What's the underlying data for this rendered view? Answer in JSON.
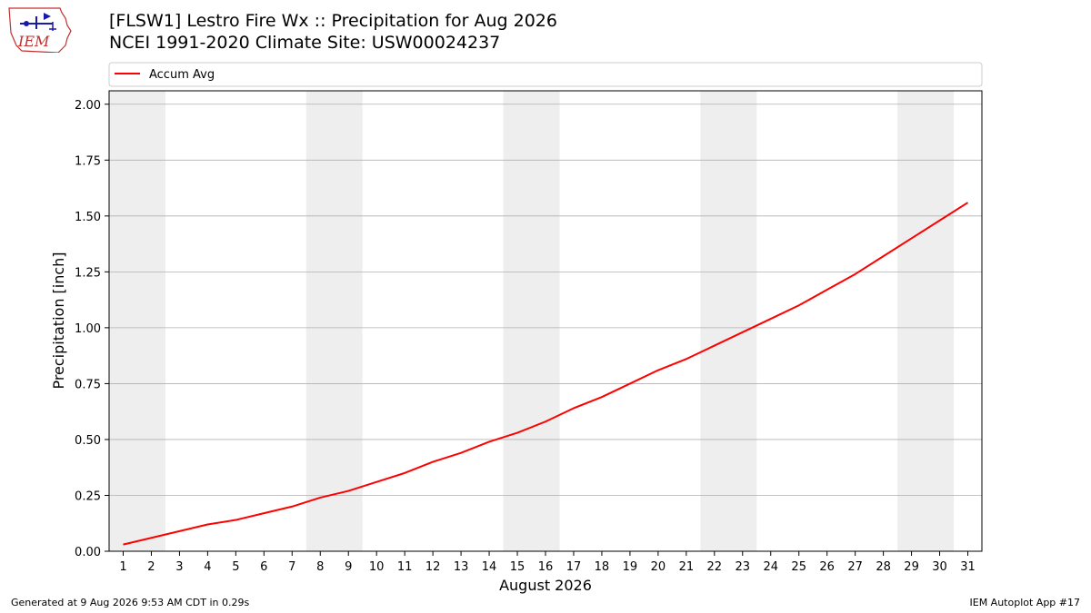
{
  "header": {
    "title_line1": "[FLSW1] Lestro Fire Wx :: Precipitation for Aug 2026",
    "title_line2": "NCEI 1991-2020 Climate Site: USW00024237"
  },
  "logo": {
    "text": "IEM",
    "icon": "iowa-weather-logo-icon"
  },
  "footer": {
    "generated": "Generated at 9 Aug 2026 9:53 AM CDT in 0.29s",
    "app": "IEM Autoplot App #17"
  },
  "colors": {
    "line": "#ff0000",
    "weekend_band": "#eeeeee",
    "grid": "#b0b0b0"
  },
  "chart_data": {
    "type": "line",
    "xlabel": "August 2026",
    "ylabel": "Precipitation [inch]",
    "x": [
      1,
      2,
      3,
      4,
      5,
      6,
      7,
      8,
      9,
      10,
      11,
      12,
      13,
      14,
      15,
      16,
      17,
      18,
      19,
      20,
      21,
      22,
      23,
      24,
      25,
      26,
      27,
      28,
      29,
      30,
      31
    ],
    "xlim": [
      0.5,
      31.5
    ],
    "ylim": [
      0,
      2.06
    ],
    "yticks": [
      0.0,
      0.25,
      0.5,
      0.75,
      1.0,
      1.25,
      1.5,
      1.75,
      2.0
    ],
    "ytick_labels": [
      "0.00",
      "0.25",
      "0.50",
      "0.75",
      "1.00",
      "1.25",
      "1.50",
      "1.75",
      "2.00"
    ],
    "grid": "horizontal",
    "legend": "top",
    "weekend_bands": [
      [
        1,
        2
      ],
      [
        8,
        9
      ],
      [
        15,
        16
      ],
      [
        22,
        23
      ],
      [
        29,
        30
      ]
    ],
    "series": [
      {
        "name": "Accum Avg",
        "color": "#ff0000",
        "values": [
          0.03,
          0.06,
          0.09,
          0.12,
          0.14,
          0.17,
          0.2,
          0.24,
          0.27,
          0.31,
          0.35,
          0.4,
          0.44,
          0.49,
          0.53,
          0.58,
          0.64,
          0.69,
          0.75,
          0.81,
          0.86,
          0.92,
          0.98,
          1.04,
          1.1,
          1.17,
          1.24,
          1.32,
          1.4,
          1.48,
          1.56
        ]
      }
    ]
  }
}
